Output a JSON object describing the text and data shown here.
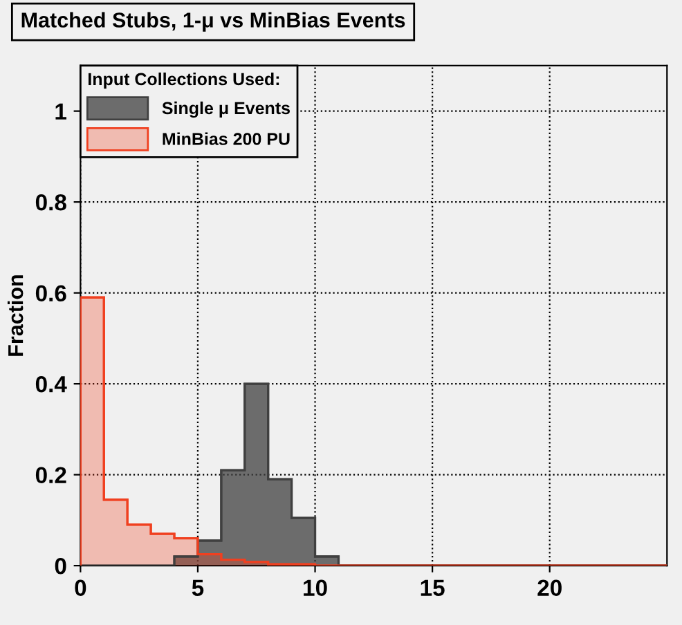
{
  "chart_data": {
    "type": "histogram",
    "title": "Matched Stubs, 1-μ vs MinBias Events",
    "ylabel": "Fraction",
    "legend_title": "Input Collections Used:",
    "bins": [
      0,
      1,
      2,
      3,
      4,
      5,
      6,
      7,
      8,
      9,
      10,
      11,
      12,
      13,
      14,
      15,
      16,
      17,
      18,
      19,
      20,
      21,
      22,
      23,
      24,
      25
    ],
    "series": [
      {
        "name": "Single μ Events",
        "color": "#404040",
        "values": [
          0,
          0,
          0,
          0,
          0.02,
          0.055,
          0.21,
          0.4,
          0.19,
          0.105,
          0.02,
          0,
          0,
          0,
          0,
          0,
          0,
          0,
          0,
          0,
          0,
          0,
          0,
          0,
          0
        ]
      },
      {
        "name": "MinBias 200 PU",
        "color": "#f04020",
        "values": [
          0.59,
          0.145,
          0.09,
          0.07,
          0.06,
          0.025,
          0.013,
          0.008,
          0.003,
          0.003,
          0,
          0,
          0,
          0,
          0,
          0,
          0,
          0,
          0,
          0,
          0,
          0,
          0,
          0,
          0
        ]
      }
    ],
    "xlim": [
      0,
      25
    ],
    "ylim": [
      0,
      1.1
    ],
    "xticks": [
      0,
      5,
      10,
      15,
      20
    ],
    "yticks": [
      0,
      0.2,
      0.4,
      0.6,
      0.8,
      1
    ],
    "grid": true,
    "legend": "top left"
  }
}
